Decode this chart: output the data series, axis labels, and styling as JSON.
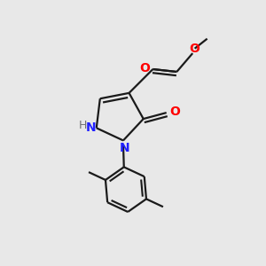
{
  "bg_color": "#e8e8e8",
  "bond_color": "#1a1a1a",
  "N_color": "#2020ff",
  "O_color": "#ff0000",
  "H_color": "#707070",
  "line_width": 1.6,
  "figsize": [
    3.0,
    3.0
  ],
  "dpi": 100,
  "xlim": [
    0.0,
    1.0
  ],
  "ylim": [
    0.0,
    1.0
  ]
}
